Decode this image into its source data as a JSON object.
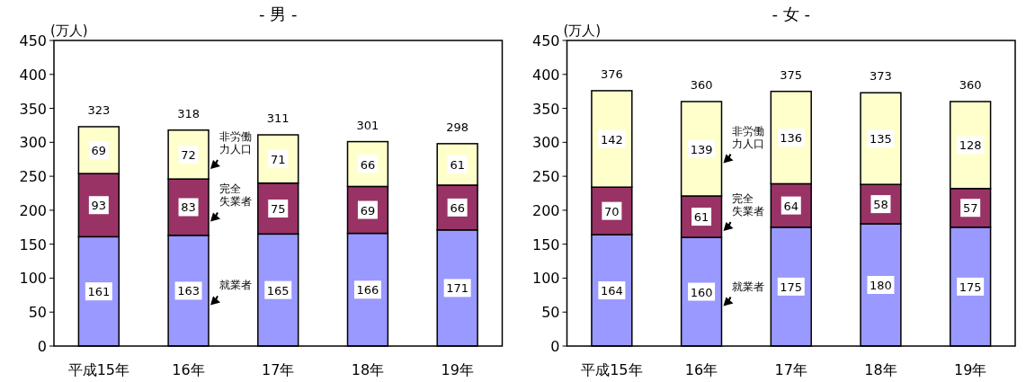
{
  "chart_data": [
    {
      "type": "bar",
      "title": "- 男 -",
      "ylabel": "(万人)",
      "stacked": true,
      "data_labels": true,
      "categories": [
        "平成15年",
        "16年",
        "17年",
        "18年",
        "19年"
      ],
      "ylim": [
        0,
        450
      ],
      "yticks": [
        0,
        50,
        100,
        150,
        200,
        250,
        300,
        350,
        400,
        450
      ],
      "series": [
        {
          "name": "就業者",
          "color": "#9999ff",
          "values": [
            161,
            163,
            165,
            166,
            171
          ]
        },
        {
          "name": "完全失業者",
          "color": "#993366",
          "values": [
            93,
            83,
            75,
            69,
            66
          ]
        },
        {
          "name": "非労働力人口",
          "color": "#ffffcc",
          "values": [
            69,
            72,
            71,
            66,
            61
          ]
        }
      ],
      "totals": [
        "323",
        "318",
        "311",
        "301",
        "298"
      ]
    },
    {
      "type": "bar",
      "title": "- 女 -",
      "ylabel": "(万人)",
      "stacked": true,
      "data_labels": true,
      "categories": [
        "平成15年",
        "16年",
        "17年",
        "18年",
        "19年"
      ],
      "ylim": [
        0,
        450
      ],
      "yticks": [
        0,
        50,
        100,
        150,
        200,
        250,
        300,
        350,
        400,
        450
      ],
      "series": [
        {
          "name": "就業者",
          "color": "#9999ff",
          "values": [
            164,
            160,
            175,
            180,
            175
          ]
        },
        {
          "name": "完全失業者",
          "color": "#993366",
          "values": [
            70,
            61,
            64,
            58,
            57
          ]
        },
        {
          "name": "非労働力人口",
          "color": "#ffffcc",
          "values": [
            142,
            139,
            136,
            135,
            128
          ]
        }
      ],
      "totals": [
        "376",
        "360",
        "375",
        "373",
        "360"
      ]
    }
  ]
}
